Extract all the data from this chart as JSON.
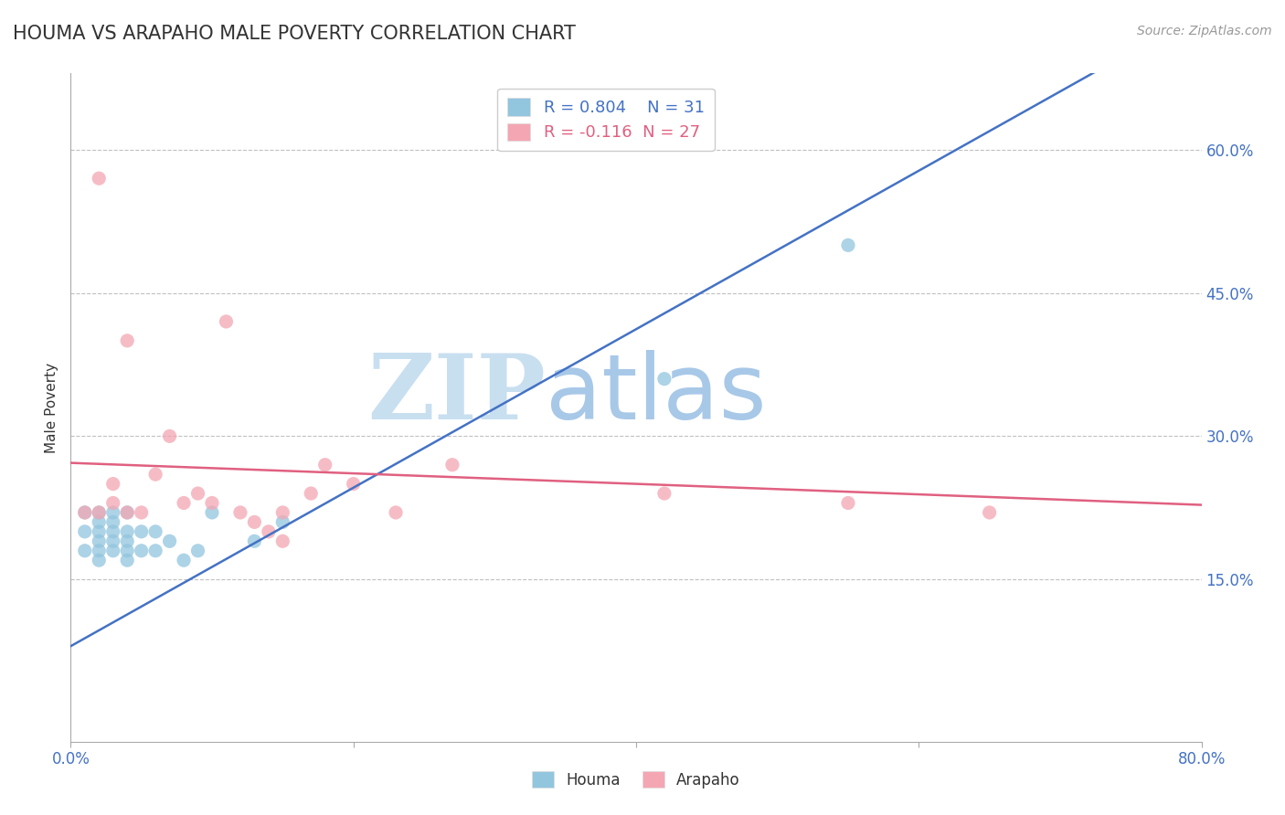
{
  "title": "HOUMA VS ARAPAHO MALE POVERTY CORRELATION CHART",
  "source_text": "Source: ZipAtlas.com",
  "ylabel": "Male Poverty",
  "xlim": [
    0.0,
    0.8
  ],
  "ylim": [
    -0.02,
    0.68
  ],
  "x_ticks": [
    0.0,
    0.2,
    0.4,
    0.6,
    0.8
  ],
  "x_tick_labels": [
    "0.0%",
    "",
    "",
    "",
    "80.0%"
  ],
  "right_y_ticks": [
    0.15,
    0.3,
    0.45,
    0.6
  ],
  "right_y_tick_labels": [
    "15.0%",
    "30.0%",
    "45.0%",
    "60.0%"
  ],
  "houma_R": 0.804,
  "houma_N": 31,
  "arapaho_R": -0.116,
  "arapaho_N": 27,
  "houma_color": "#92c5de",
  "arapaho_color": "#f4a6b2",
  "houma_line_color": "#4472c4",
  "arapaho_line_color": "#e06080",
  "watermark_zip": "ZIP",
  "watermark_atlas": "atlas",
  "watermark_color_zip": "#c8dff0",
  "watermark_color_atlas": "#a8c8e8",
  "houma_x": [
    0.01,
    0.01,
    0.01,
    0.02,
    0.02,
    0.02,
    0.02,
    0.02,
    0.02,
    0.03,
    0.03,
    0.03,
    0.03,
    0.03,
    0.04,
    0.04,
    0.04,
    0.04,
    0.04,
    0.05,
    0.05,
    0.06,
    0.06,
    0.07,
    0.08,
    0.09,
    0.1,
    0.13,
    0.15,
    0.42,
    0.55
  ],
  "houma_y": [
    0.18,
    0.2,
    0.22,
    0.17,
    0.18,
    0.19,
    0.2,
    0.21,
    0.22,
    0.18,
    0.19,
    0.2,
    0.21,
    0.22,
    0.17,
    0.18,
    0.19,
    0.2,
    0.22,
    0.18,
    0.2,
    0.18,
    0.2,
    0.19,
    0.17,
    0.18,
    0.22,
    0.19,
    0.21,
    0.36,
    0.5
  ],
  "arapaho_x": [
    0.01,
    0.02,
    0.02,
    0.03,
    0.03,
    0.04,
    0.04,
    0.05,
    0.06,
    0.07,
    0.08,
    0.09,
    0.1,
    0.11,
    0.12,
    0.13,
    0.14,
    0.15,
    0.15,
    0.17,
    0.18,
    0.2,
    0.23,
    0.27,
    0.42,
    0.55,
    0.65
  ],
  "arapaho_y": [
    0.22,
    0.22,
    0.57,
    0.23,
    0.25,
    0.22,
    0.4,
    0.22,
    0.26,
    0.3,
    0.23,
    0.24,
    0.23,
    0.42,
    0.22,
    0.21,
    0.2,
    0.19,
    0.22,
    0.24,
    0.27,
    0.25,
    0.22,
    0.27,
    0.24,
    0.23,
    0.22
  ],
  "title_color": "#333333",
  "axis_color": "#4472c4",
  "grid_color": "#c0c0c0",
  "background_color": "#ffffff"
}
